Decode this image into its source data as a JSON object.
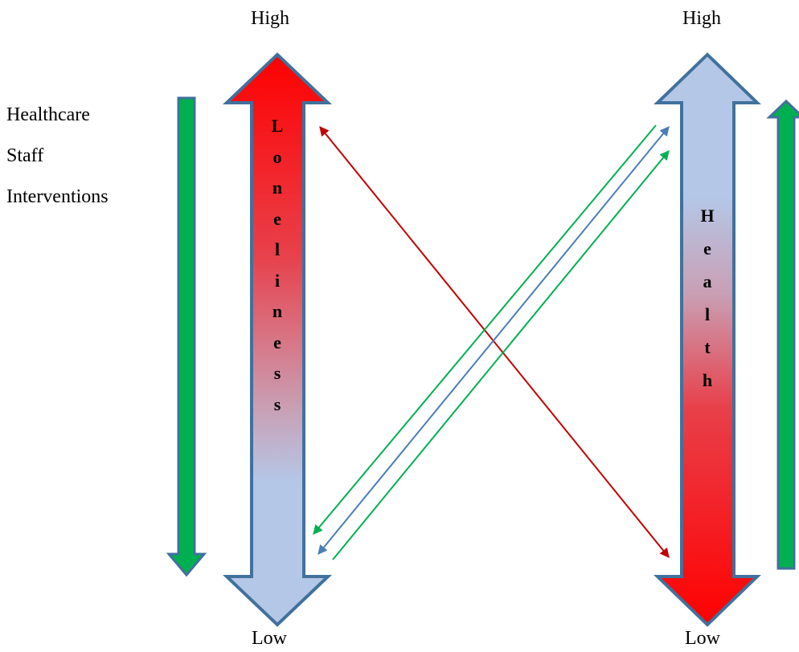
{
  "scale_labels": {
    "left_high": "High",
    "right_high": "High",
    "left_low": "Low",
    "right_low": "Low"
  },
  "side_label": {
    "line1": "Healthcare",
    "line2": "Staff",
    "line3": "Interventions"
  },
  "loneliness_letters": [
    "L",
    "o",
    "n",
    "e",
    "l",
    "i",
    "n",
    "e",
    "s",
    "s"
  ],
  "health_letters": [
    "H",
    "e",
    "a",
    "l",
    "t",
    "h"
  ],
  "colors": {
    "red": "#ff0000",
    "light_blue": "#b4c7e7",
    "arrow_border": "#41719c",
    "green": "#00b050",
    "dark_red": "#c00000",
    "blue_line": "#4a7ebb"
  }
}
